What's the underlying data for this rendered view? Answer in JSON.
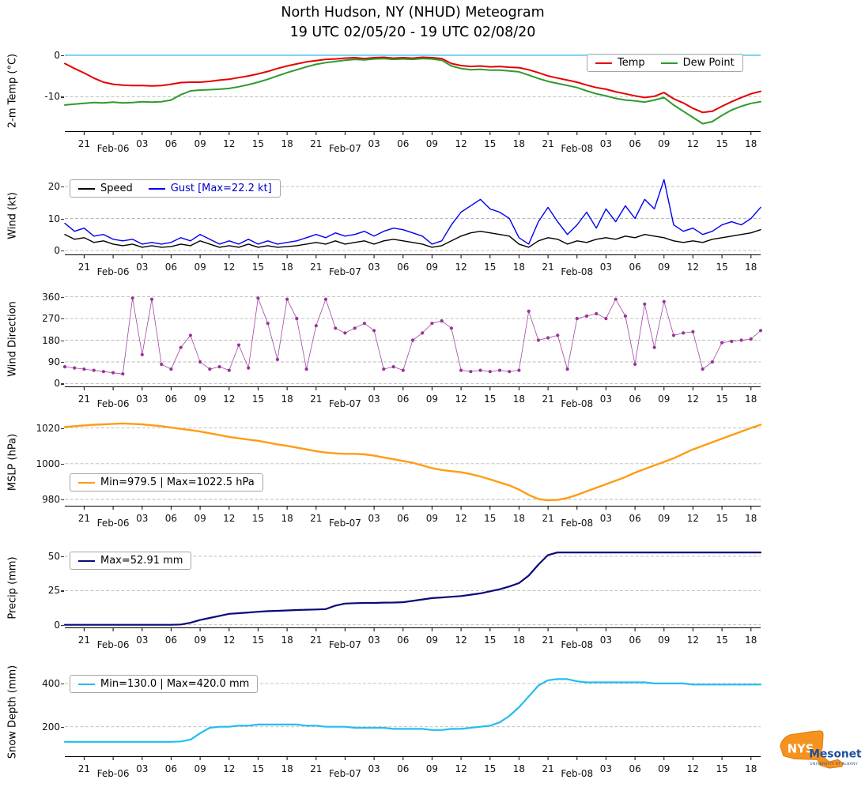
{
  "title": {
    "line1": "North Hudson, NY (NHUD) Meteogram",
    "line2": "19 UTC 02/05/20 - 19 UTC 02/08/20"
  },
  "x_note": "x values are hours elapsed since 19 UTC 02/05/20; span is 72 hours",
  "x_hours": [
    0,
    1,
    2,
    3,
    4,
    5,
    6,
    7,
    8,
    9,
    10,
    11,
    12,
    13,
    14,
    15,
    16,
    17,
    18,
    19,
    20,
    21,
    22,
    23,
    24,
    25,
    26,
    27,
    28,
    29,
    30,
    31,
    32,
    33,
    34,
    35,
    36,
    37,
    38,
    39,
    40,
    41,
    42,
    43,
    44,
    45,
    46,
    47,
    48,
    49,
    50,
    51,
    52,
    53,
    54,
    55,
    56,
    57,
    58,
    59,
    60,
    61,
    62,
    63,
    64,
    65,
    66,
    67,
    68,
    69,
    70,
    71,
    72
  ],
  "x_ticks": [
    {
      "h": 2,
      "label": "21"
    },
    {
      "h": 5,
      "label": "Feb-06",
      "date": true
    },
    {
      "h": 8,
      "label": "03"
    },
    {
      "h": 11,
      "label": "06"
    },
    {
      "h": 14,
      "label": "09"
    },
    {
      "h": 17,
      "label": "12"
    },
    {
      "h": 20,
      "label": "15"
    },
    {
      "h": 23,
      "label": "18"
    },
    {
      "h": 26,
      "label": "21"
    },
    {
      "h": 29,
      "label": "Feb-07",
      "date": true
    },
    {
      "h": 32,
      "label": "03"
    },
    {
      "h": 35,
      "label": "06"
    },
    {
      "h": 38,
      "label": "09"
    },
    {
      "h": 41,
      "label": "12"
    },
    {
      "h": 44,
      "label": "15"
    },
    {
      "h": 47,
      "label": "18"
    },
    {
      "h": 50,
      "label": "21"
    },
    {
      "h": 53,
      "label": "Feb-08",
      "date": true
    },
    {
      "h": 56,
      "label": "03"
    },
    {
      "h": 59,
      "label": "06"
    },
    {
      "h": 62,
      "label": "09"
    },
    {
      "h": 65,
      "label": "12"
    },
    {
      "h": 68,
      "label": "15"
    },
    {
      "h": 71,
      "label": "18"
    }
  ],
  "chart_data": [
    {
      "id": "temp",
      "type": "line",
      "ylabel": "2-m Temp (°C)",
      "ylim": [
        -18.5,
        1.5
      ],
      "yticks": [
        0,
        -10
      ],
      "refline": {
        "y": 0,
        "color": "#49c4ef"
      },
      "legend": {
        "position": "top-right",
        "entries": [
          {
            "label": "Temp",
            "color": "#e60000"
          },
          {
            "label": "Dew Point",
            "color": "#2e9b2e"
          }
        ]
      },
      "series": [
        {
          "name": "Temp",
          "color": "#e60000",
          "width": 2,
          "values": [
            -2.0,
            -3.2,
            -4.3,
            -5.5,
            -6.5,
            -7.0,
            -7.2,
            -7.3,
            -7.3,
            -7.4,
            -7.3,
            -7.0,
            -6.6,
            -6.5,
            -6.5,
            -6.3,
            -6.0,
            -5.8,
            -5.4,
            -5.0,
            -4.5,
            -3.9,
            -3.2,
            -2.6,
            -2.1,
            -1.6,
            -1.3,
            -1.0,
            -0.9,
            -0.7,
            -0.6,
            -0.8,
            -0.6,
            -0.5,
            -0.7,
            -0.6,
            -0.7,
            -0.5,
            -0.6,
            -0.8,
            -2.0,
            -2.5,
            -2.7,
            -2.6,
            -2.8,
            -2.7,
            -2.9,
            -3.0,
            -3.5,
            -4.2,
            -5.0,
            -5.5,
            -6.0,
            -6.5,
            -7.2,
            -7.8,
            -8.2,
            -8.8,
            -9.3,
            -9.8,
            -10.2,
            -9.9,
            -9.0,
            -10.5,
            -11.5,
            -12.8,
            -13.8,
            -13.5,
            -12.3,
            -11.2,
            -10.2,
            -9.3,
            -8.7
          ]
        },
        {
          "name": "Dew Point",
          "color": "#2e9b2e",
          "width": 2,
          "values": [
            -12.0,
            -11.8,
            -11.6,
            -11.4,
            -11.5,
            -11.3,
            -11.5,
            -11.4,
            -11.2,
            -11.3,
            -11.2,
            -10.8,
            -9.5,
            -8.6,
            -8.4,
            -8.3,
            -8.2,
            -8.0,
            -7.6,
            -7.1,
            -6.5,
            -5.8,
            -5.0,
            -4.2,
            -3.5,
            -2.8,
            -2.2,
            -1.8,
            -1.5,
            -1.2,
            -1.0,
            -1.1,
            -0.9,
            -0.8,
            -1.0,
            -0.9,
            -1.0,
            -0.8,
            -0.9,
            -1.2,
            -2.6,
            -3.2,
            -3.5,
            -3.4,
            -3.6,
            -3.6,
            -3.8,
            -4.0,
            -4.8,
            -5.6,
            -6.3,
            -6.8,
            -7.3,
            -7.8,
            -8.6,
            -9.3,
            -9.8,
            -10.4,
            -10.8,
            -11.0,
            -11.3,
            -10.8,
            -10.2,
            -12.0,
            -13.5,
            -15.0,
            -16.5,
            -16.0,
            -14.5,
            -13.2,
            -12.3,
            -11.6,
            -11.2
          ]
        }
      ]
    },
    {
      "id": "wind",
      "type": "line",
      "ylabel": "Wind (kt)",
      "ylim": [
        -1.5,
        23.5
      ],
      "yticks": [
        20,
        10,
        0
      ],
      "max_gust_kt": 22.2,
      "legend": {
        "position": "top-left",
        "entries": [
          {
            "label": "Speed",
            "color": "#000000"
          },
          {
            "label": "Gust [Max=22.2 kt]",
            "color": "#0000ee",
            "text_color": "#0000cc"
          }
        ]
      },
      "series": [
        {
          "name": "Gust",
          "color": "#0000ee",
          "width": 1.4,
          "values": [
            8.5,
            6,
            7,
            4.5,
            5,
            3.5,
            3,
            3.5,
            2,
            2.5,
            2,
            2.5,
            4,
            3,
            5,
            3.5,
            2,
            3,
            2,
            3.5,
            2,
            3,
            2,
            2.5,
            3,
            4,
            5,
            4,
            5.5,
            4.5,
            5,
            6,
            4.5,
            6,
            7,
            6.5,
            5.5,
            4.5,
            2,
            3,
            8,
            12,
            14,
            16,
            13,
            12,
            10,
            4,
            2,
            9,
            13.5,
            9,
            5,
            8,
            12,
            7,
            13,
            9,
            14,
            10,
            16,
            13,
            22.2,
            8,
            6,
            7,
            5,
            6,
            8,
            9,
            8,
            10,
            13.5
          ]
        },
        {
          "name": "Speed",
          "color": "#000000",
          "width": 1.4,
          "values": [
            5,
            3.5,
            4,
            2.5,
            3,
            2,
            1.5,
            2,
            1,
            1.5,
            1,
            1.2,
            2,
            1.5,
            3,
            2,
            1,
            1.5,
            1,
            2,
            1,
            1.5,
            1,
            1.2,
            1.5,
            2,
            2.5,
            2,
            3,
            2,
            2.5,
            3,
            2,
            3,
            3.5,
            3,
            2.5,
            2,
            1,
            1.5,
            3,
            4.5,
            5.5,
            6,
            5.5,
            5,
            4.5,
            2,
            1,
            3,
            4,
            3.5,
            2,
            3,
            2.5,
            3.5,
            4,
            3.5,
            4.5,
            4,
            5,
            4.5,
            4,
            3,
            2.5,
            3,
            2.5,
            3.5,
            4,
            4.5,
            5,
            5.5,
            6.5
          ]
        }
      ]
    },
    {
      "id": "wind-direction",
      "type": "scatter-line",
      "ylabel": "Wind Direction",
      "ylim": [
        -15,
        385
      ],
      "yticks": [
        360,
        270,
        180,
        90,
        0
      ],
      "series": [
        {
          "name": "Wind Direction",
          "color": "#993399",
          "width": 0.8,
          "marker": true,
          "opacity": 0.9,
          "values": [
            70,
            65,
            60,
            55,
            50,
            45,
            40,
            355,
            120,
            350,
            80,
            60,
            150,
            200,
            90,
            60,
            70,
            55,
            160,
            65,
            355,
            250,
            100,
            350,
            270,
            60,
            240,
            350,
            230,
            210,
            230,
            250,
            220,
            60,
            70,
            55,
            180,
            210,
            250,
            260,
            230,
            55,
            50,
            55,
            50,
            55,
            50,
            55,
            300,
            180,
            190,
            200,
            60,
            270,
            280,
            290,
            270,
            350,
            280,
            80,
            330,
            150,
            340,
            200,
            210,
            215,
            60,
            90,
            170,
            175,
            180,
            185,
            220
          ]
        }
      ]
    },
    {
      "id": "mslp",
      "type": "line",
      "ylabel": "MSLP (hPa)",
      "ylim": [
        976,
        1026
      ],
      "yticks": [
        1020,
        1000,
        980
      ],
      "min_hpa": 979.5,
      "max_hpa": 1022.5,
      "legend": {
        "position": "center-left",
        "entries": [
          {
            "label": "Min=979.5 | Max=1022.5 hPa",
            "color": "#ff9c12"
          }
        ]
      },
      "series": [
        {
          "name": "MSLP",
          "color": "#ff9c12",
          "width": 2.4,
          "values": [
            1020.5,
            1021.0,
            1021.4,
            1021.8,
            1022.0,
            1022.3,
            1022.5,
            1022.3,
            1022.0,
            1021.5,
            1021.0,
            1020.2,
            1019.5,
            1018.8,
            1018.0,
            1017.0,
            1016.0,
            1015.0,
            1014.2,
            1013.5,
            1012.8,
            1011.8,
            1010.8,
            1010.0,
            1009.0,
            1008.0,
            1007.0,
            1006.2,
            1005.8,
            1005.5,
            1005.5,
            1005.2,
            1004.5,
            1003.5,
            1002.5,
            1001.5,
            1000.5,
            999.0,
            997.5,
            996.5,
            995.8,
            995.2,
            994.2,
            992.8,
            991.2,
            989.5,
            987.8,
            985.5,
            982.5,
            980.2,
            979.5,
            979.7,
            980.8,
            982.5,
            984.5,
            986.5,
            988.5,
            990.5,
            992.5,
            995.0,
            997.0,
            999.0,
            1001.0,
            1003.0,
            1005.5,
            1008.0,
            1010.0,
            1012.0,
            1014.0,
            1016.0,
            1018.0,
            1020.0,
            1021.8
          ]
        }
      ]
    },
    {
      "id": "precip",
      "type": "line",
      "ylabel": "Precip (mm)",
      "ylim": [
        -2.5,
        57
      ],
      "yticks": [
        50,
        25,
        0
      ],
      "max_mm": 52.91,
      "legend": {
        "position": "top-left",
        "entries": [
          {
            "label": "Max=52.91 mm",
            "color": "#0a0a78"
          }
        ]
      },
      "series": [
        {
          "name": "Precip",
          "color": "#0a0a78",
          "width": 2.2,
          "values": [
            0,
            0,
            0,
            0,
            0,
            0,
            0,
            0,
            0,
            0,
            0,
            0,
            0.2,
            1.5,
            3.5,
            5.0,
            6.5,
            8.0,
            8.5,
            9.0,
            9.5,
            10.0,
            10.2,
            10.5,
            10.8,
            11.0,
            11.2,
            11.5,
            14.0,
            15.5,
            15.8,
            16.0,
            16.0,
            16.2,
            16.3,
            16.5,
            17.5,
            18.5,
            19.5,
            20.0,
            20.5,
            21.0,
            22.0,
            23.0,
            24.5,
            26.0,
            28.0,
            30.5,
            36.0,
            44.0,
            51.0,
            52.9,
            52.91,
            52.91,
            52.91,
            52.91,
            52.91,
            52.91,
            52.91,
            52.91,
            52.91,
            52.91,
            52.91,
            52.91,
            52.91,
            52.91,
            52.91,
            52.91,
            52.91,
            52.91,
            52.91,
            52.91,
            52.91
          ]
        }
      ]
    },
    {
      "id": "snow-depth",
      "type": "line",
      "ylabel": "Snow Depth (mm)",
      "ylim": [
        60,
        480
      ],
      "yticks": [
        400,
        200
      ],
      "min_mm": 130.0,
      "max_mm": 420.0,
      "legend": {
        "position": "top-left",
        "entries": [
          {
            "label": "Min=130.0 | Max=420.0 mm",
            "color": "#23bdf2"
          }
        ]
      },
      "series": [
        {
          "name": "Snow Depth",
          "color": "#23bdf2",
          "width": 2.2,
          "values": [
            130,
            130,
            130,
            130,
            130,
            130,
            130,
            130,
            130,
            130,
            130,
            130,
            132,
            140,
            170,
            195,
            200,
            200,
            205,
            205,
            210,
            210,
            210,
            210,
            210,
            205,
            205,
            200,
            200,
            200,
            195,
            195,
            195,
            195,
            190,
            190,
            190,
            190,
            185,
            185,
            190,
            190,
            195,
            200,
            205,
            220,
            250,
            290,
            340,
            390,
            415,
            420,
            420,
            410,
            405,
            405,
            405,
            405,
            405,
            405,
            405,
            400,
            400,
            400,
            400,
            395,
            395,
            395,
            395,
            395,
            395,
            395,
            395
          ]
        }
      ]
    }
  ],
  "logo": {
    "nys": "NYS",
    "mesonet": "Mesonet",
    "tagline": "UNIVERSITY AT ALBANY"
  }
}
